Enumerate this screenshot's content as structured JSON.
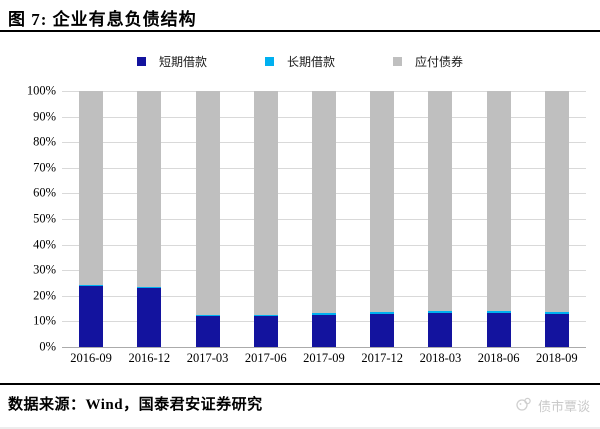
{
  "title": "图 7: 企业有息负债结构",
  "source_note": "数据来源：Wind，国泰君安证券研究",
  "watermark_text": "债市覃谈",
  "colors": {
    "short_term": "#13139E",
    "long_term": "#00B0F0",
    "bonds_payable": "#BFBFBF",
    "gridline": "#D9D9D9",
    "axis_line": "#ABABAB",
    "title_rule": "#000000",
    "watermark": "#C9C9C9"
  },
  "chart_data": {
    "type": "bar",
    "stacked": true,
    "title": "企业有息负债结构",
    "categories": [
      "2016-09",
      "2016-12",
      "2017-03",
      "2017-06",
      "2017-09",
      "2017-12",
      "2018-03",
      "2018-06",
      "2018-09"
    ],
    "series": [
      {
        "key": "short-term-loans",
        "name": "短期借款",
        "color": "#13139E",
        "values": [
          23.7,
          23.0,
          12.0,
          12.0,
          12.7,
          13.0,
          13.4,
          13.4,
          13.0
        ]
      },
      {
        "key": "long-term-loans",
        "name": "长期借款",
        "color": "#00B0F0",
        "values": [
          0.5,
          0.5,
          0.5,
          0.5,
          0.5,
          0.5,
          0.5,
          0.5,
          0.5
        ]
      },
      {
        "key": "bonds-payable",
        "name": "应付债券",
        "color": "#BFBFBF",
        "values": [
          75.8,
          76.5,
          87.5,
          87.5,
          86.8,
          86.5,
          86.1,
          86.1,
          86.5
        ]
      }
    ],
    "ylim": [
      0,
      100
    ],
    "ytick_step": 10,
    "ytick_labels": [
      "0%",
      "10%",
      "20%",
      "30%",
      "40%",
      "50%",
      "60%",
      "70%",
      "80%",
      "90%",
      "100%"
    ],
    "grid": true,
    "legend_position": "top"
  }
}
